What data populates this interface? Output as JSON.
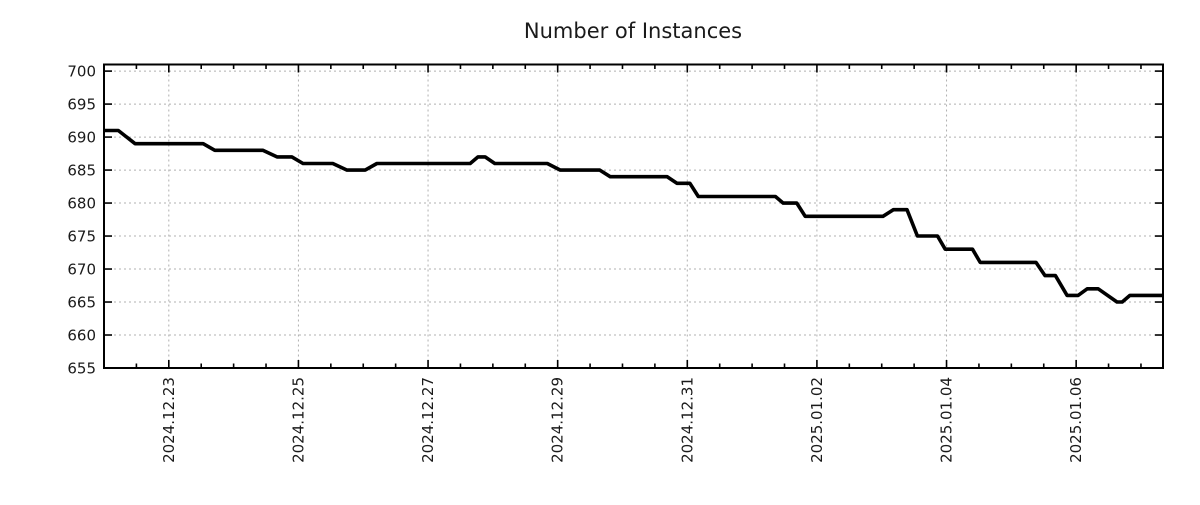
{
  "chart_data": {
    "type": "line",
    "title": "Number of Instances",
    "xlabel": "",
    "ylabel": "",
    "legend": "none",
    "grid": true,
    "background_color": "#ffffff",
    "line_color": "#000000",
    "grid_color": "#b0b0b0",
    "axis_color": "#000000",
    "x_tick_labels": [
      "2024.12.23",
      "2024.12.25",
      "2024.12.27",
      "2024.12.29",
      "2024.12.31",
      "2025.01.02",
      "2025.01.04",
      "2025.01.06"
    ],
    "x_tick_days": [
      1,
      3,
      5,
      7,
      9,
      11,
      13,
      15
    ],
    "x_minor_step_days": 0.5,
    "x_range_days": [
      0,
      16.34
    ],
    "y_ticks": [
      655,
      660,
      665,
      670,
      675,
      680,
      685,
      690,
      695,
      700
    ],
    "y_range": [
      655,
      701
    ],
    "series": [
      {
        "name": "instances",
        "points": [
          [
            0,
            691
          ],
          [
            0.22,
            691
          ],
          [
            0.48,
            689
          ],
          [
            1.53,
            689
          ],
          [
            1.71,
            688
          ],
          [
            2.45,
            688
          ],
          [
            2.67,
            687
          ],
          [
            2.9,
            687
          ],
          [
            3.07,
            686
          ],
          [
            3.53,
            686
          ],
          [
            3.75,
            685
          ],
          [
            4.03,
            685
          ],
          [
            4.21,
            686
          ],
          [
            5.65,
            686
          ],
          [
            5.77,
            687
          ],
          [
            5.88,
            687
          ],
          [
            6.03,
            686
          ],
          [
            6.84,
            686
          ],
          [
            7.04,
            685
          ],
          [
            7.65,
            685
          ],
          [
            7.81,
            684
          ],
          [
            8.69,
            684
          ],
          [
            8.84,
            683
          ],
          [
            9.04,
            683
          ],
          [
            9.17,
            681
          ],
          [
            10.36,
            681
          ],
          [
            10.48,
            680
          ],
          [
            10.69,
            680
          ],
          [
            10.82,
            678
          ],
          [
            12.02,
            678
          ],
          [
            12.18,
            679
          ],
          [
            12.39,
            679
          ],
          [
            12.55,
            675
          ],
          [
            12.86,
            675
          ],
          [
            12.98,
            673
          ],
          [
            13.4,
            673
          ],
          [
            13.52,
            671
          ],
          [
            14.38,
            671
          ],
          [
            14.52,
            669
          ],
          [
            14.68,
            669
          ],
          [
            14.86,
            666
          ],
          [
            15.03,
            666
          ],
          [
            15.17,
            667
          ],
          [
            15.34,
            667
          ],
          [
            15.63,
            665
          ],
          [
            15.71,
            665
          ],
          [
            15.83,
            666
          ],
          [
            16.34,
            666
          ]
        ]
      }
    ]
  }
}
